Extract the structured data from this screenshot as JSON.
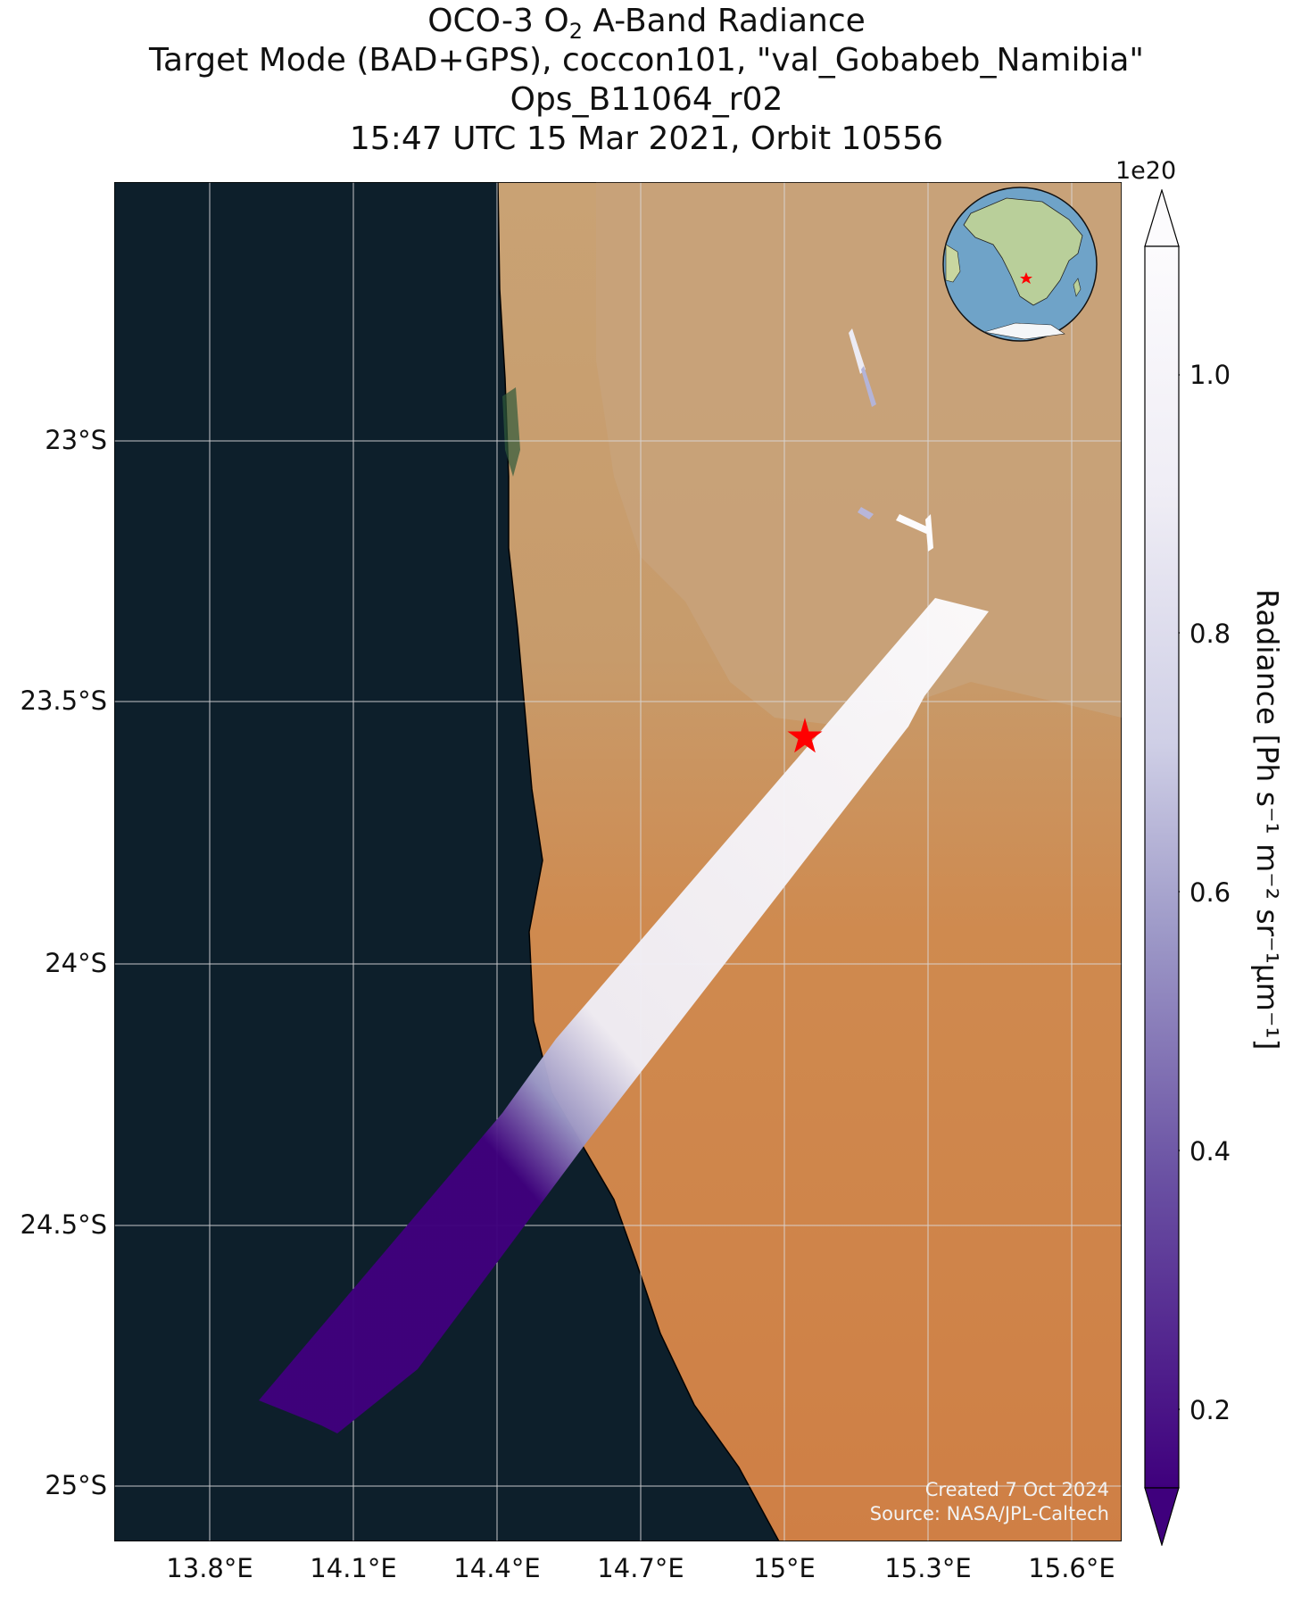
{
  "title": {
    "line1_prefix": "OCO-3 O",
    "line1_sub": "2",
    "line1_suffix": " A-Band Radiance",
    "line2": "Target Mode (BAD+GPS), coccon101, \"val_Gobabeb_Namibia\"",
    "line3": "Ops_B11064_r02",
    "line4": "15:47 UTC 15 Mar 2021, Orbit 10556"
  },
  "map": {
    "lat_labels": [
      "23°S",
      "23.5°S",
      "24°S",
      "24.5°S",
      "25°S"
    ],
    "lon_labels": [
      "13.8°E",
      "14.1°E",
      "14.4°E",
      "14.7°E",
      "15°E",
      "15.3°E",
      "15.6°E"
    ],
    "target_marker": "red-star",
    "credit_line1": "Created 7 Oct 2024",
    "credit_line2": "Source: NASA/JPL-Caltech",
    "colors": {
      "ocean": "#0d1f2b",
      "desert": "#c9965f",
      "dunes": "#d07e45",
      "target": "#ff0000"
    }
  },
  "colorbar": {
    "multiplier": "1e20",
    "ticks": [
      "1.0",
      "0.8",
      "0.6",
      "0.4",
      "0.2"
    ],
    "label": "Radiance [Ph s⁻¹ m⁻² sr⁻¹μm⁻¹]",
    "colormap": "Purples_r",
    "extend": "both"
  },
  "inset": {
    "globe": "Africa",
    "marker": "red-star"
  }
}
